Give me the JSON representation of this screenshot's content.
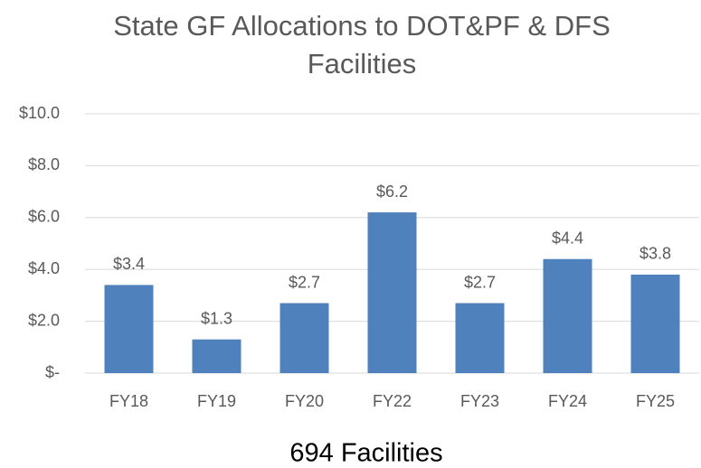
{
  "chart_data": {
    "type": "bar",
    "title": "State GF Allocations to DOT&PF & DFS Facilities",
    "xlabel": "694 Facilities",
    "categories": [
      "FY18",
      "FY19",
      "FY20",
      "FY22",
      "FY23",
      "FY24",
      "FY25"
    ],
    "values": [
      3.4,
      1.3,
      2.7,
      6.2,
      2.7,
      4.4,
      3.8
    ],
    "value_labels": [
      "$3.4",
      "$1.3",
      "$2.7",
      "$6.2",
      "$2.7",
      "$4.4",
      "$3.8"
    ],
    "color": "#4f81bd",
    "ylim": [
      0,
      10
    ],
    "yticks": [
      {
        "value": 0,
        "label": "$-"
      },
      {
        "value": 2,
        "label": "$2.0"
      },
      {
        "value": 4,
        "label": "$4.0"
      },
      {
        "value": 6,
        "label": "$6.0"
      },
      {
        "value": 8,
        "label": "$8.0"
      },
      {
        "value": 10,
        "label": "$10.0"
      }
    ],
    "grid": true
  }
}
